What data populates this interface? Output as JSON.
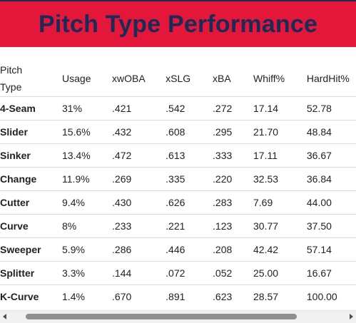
{
  "header": {
    "title": "Pitch Type Performance"
  },
  "table": {
    "columns": [
      "Pitch\nType",
      "Usage",
      "xwOBA",
      "xSLG",
      "xBA",
      "Whiff%",
      "HardHit%"
    ],
    "rows": [
      [
        "4-Seam",
        "31%",
        ".421",
        ".542",
        ".272",
        "17.14",
        "52.78"
      ],
      [
        "Slider",
        "15.6%",
        ".432",
        ".608",
        ".295",
        "21.70",
        "48.84"
      ],
      [
        "Sinker",
        "13.4%",
        ".472",
        ".613",
        ".333",
        "17.11",
        "36.67"
      ],
      [
        "Change",
        "11.9%",
        ".269",
        ".335",
        ".220",
        "32.53",
        "36.84"
      ],
      [
        "Cutter",
        "9.4%",
        ".430",
        ".626",
        ".283",
        "7.69",
        "44.00"
      ],
      [
        "Curve",
        "8%",
        ".233",
        ".221",
        ".123",
        "30.77",
        "37.50"
      ],
      [
        "Sweeper",
        "5.9%",
        ".286",
        ".446",
        ".208",
        "42.42",
        "57.14"
      ],
      [
        "Splitter",
        "3.3%",
        ".144",
        ".072",
        ".052",
        "25.00",
        "16.67"
      ],
      [
        "K-Curve",
        "1.4%",
        ".670",
        ".891",
        ".623",
        "28.57",
        "100.00"
      ]
    ]
  },
  "colors": {
    "banner": "#e4163a",
    "title": "#1a2b57"
  },
  "icons": {
    "scroll_left": "triangle-left",
    "scroll_right": "triangle-right"
  }
}
